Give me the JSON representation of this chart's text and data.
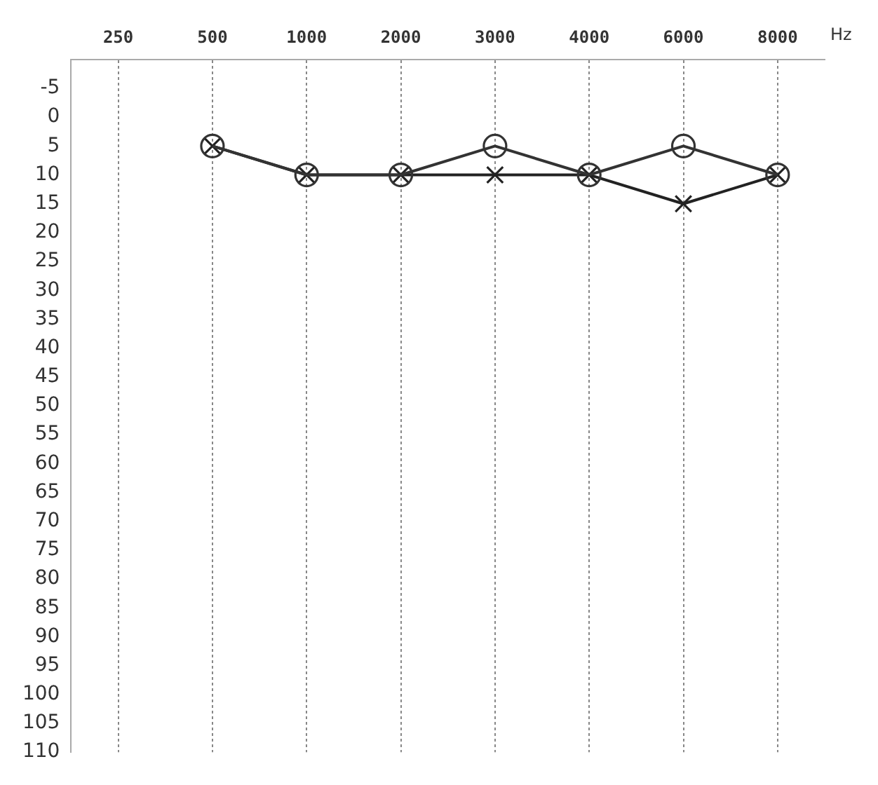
{
  "chart_data": {
    "type": "line",
    "xlabel": "Hz",
    "categories": [
      "250",
      "500",
      "1000",
      "2000",
      "3000",
      "4000",
      "6000",
      "8000"
    ],
    "series": [
      {
        "color": "#333333",
        "marker": "circle",
        "values": [
          null,
          5,
          10,
          10,
          5,
          10,
          5,
          10
        ]
      },
      {
        "color": "#222222",
        "marker": "cross",
        "values": [
          null,
          5,
          10,
          10,
          10,
          10,
          15,
          10
        ]
      }
    ],
    "ylim": [
      110,
      -10
    ],
    "yticks": [
      -5,
      0,
      5,
      10,
      15,
      20,
      25,
      30,
      35,
      40,
      45,
      50,
      55,
      60,
      65,
      70,
      75,
      80,
      85,
      90,
      95,
      100,
      105,
      110
    ],
    "grid": "x",
    "legend": false,
    "line_style": "solid"
  }
}
